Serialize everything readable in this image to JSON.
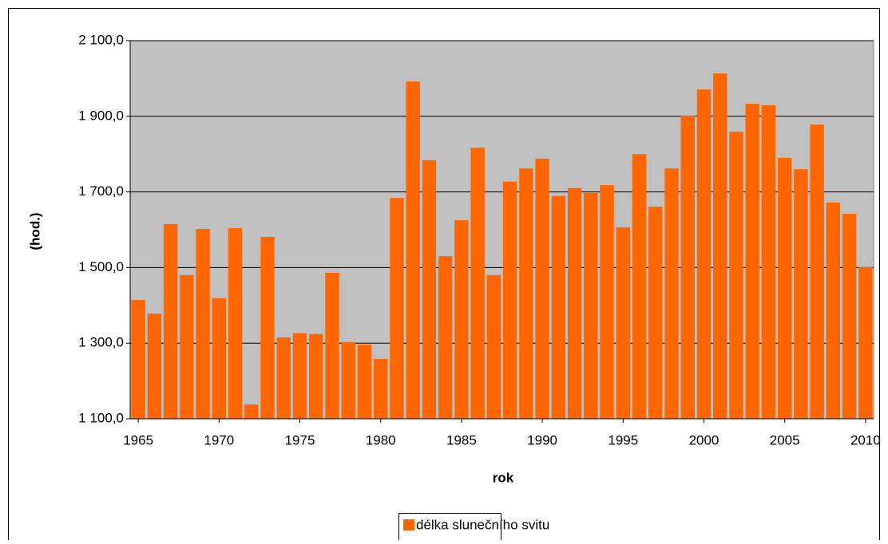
{
  "chart_data": {
    "type": "bar",
    "x": [
      1965,
      1966,
      1967,
      1968,
      1969,
      1970,
      1971,
      1972,
      1973,
      1974,
      1975,
      1976,
      1977,
      1978,
      1979,
      1980,
      1981,
      1982,
      1983,
      1984,
      1985,
      1986,
      1987,
      1988,
      1989,
      1990,
      1991,
      1992,
      1993,
      1994,
      1995,
      1996,
      1997,
      1998,
      1999,
      2000,
      2001,
      2002,
      2003,
      2004,
      2005,
      2006,
      2007,
      2008,
      2009,
      2010
    ],
    "series": [
      {
        "name": "délka slunečního svitu",
        "color": "#ff6600",
        "values": [
          1414,
          1378,
          1615,
          1480,
          1602,
          1419,
          1604,
          1138,
          1581,
          1315,
          1326,
          1324,
          1486,
          1303,
          1296,
          1258,
          1684,
          1992,
          1784,
          1530,
          1625,
          1817,
          1480,
          1727,
          1762,
          1788,
          1689,
          1710,
          1697,
          1718,
          1606,
          1800,
          1661,
          1762,
          1902,
          1971,
          2013,
          1859,
          1933,
          1929,
          1790,
          1760,
          1878,
          1672,
          1642,
          1501
        ]
      }
    ],
    "xlim": [
      1964.5,
      2010.5
    ],
    "xticks": [
      1965,
      1970,
      1975,
      1980,
      1985,
      1990,
      1995,
      2000,
      2005,
      2010
    ],
    "ylim": [
      1100,
      2100
    ],
    "yticks": [
      {
        "value": 1100,
        "label": "1 100,0"
      },
      {
        "value": 1300,
        "label": "1 300,0"
      },
      {
        "value": 1500,
        "label": "1 500,0"
      },
      {
        "value": 1700,
        "label": "1 700,0"
      },
      {
        "value": 1900,
        "label": "1 900,0"
      },
      {
        "value": 2100,
        "label": "2 100,0"
      }
    ],
    "xlabel": "rok",
    "ylabel": "(hod.)",
    "grid": true,
    "legend": "bottom"
  }
}
